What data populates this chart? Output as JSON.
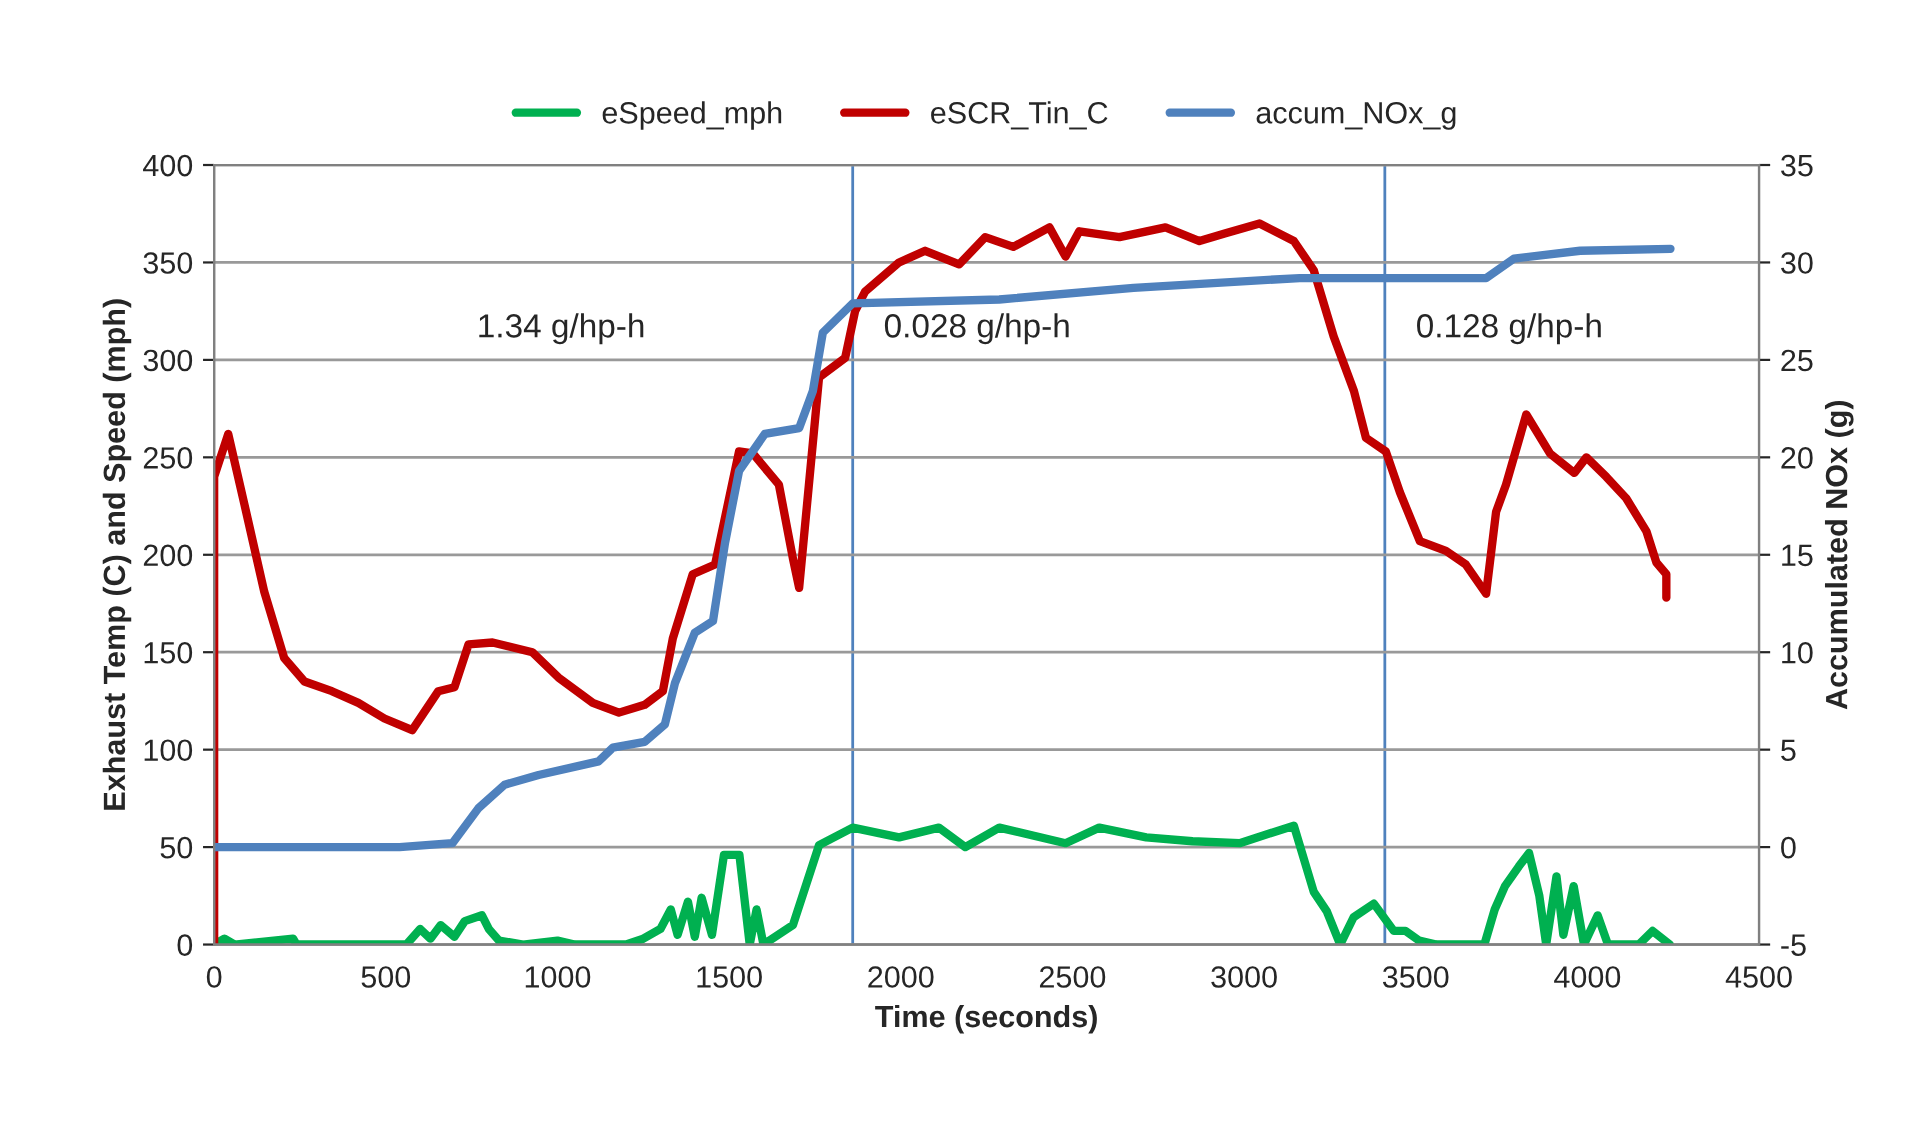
{
  "chart_data": {
    "type": "line",
    "xlabel": "Time (seconds)",
    "ylabel": "Exhaust Temp (C) and Speed (mph)",
    "y2label": "Accumulated NOx (g)",
    "xlim": [
      0,
      4500
    ],
    "xticks": [
      0,
      500,
      1000,
      1500,
      2000,
      2500,
      3000,
      3500,
      4000,
      4500
    ],
    "ylim": [
      0,
      400
    ],
    "yticks": [
      0,
      50,
      100,
      150,
      200,
      250,
      300,
      350,
      400
    ],
    "y2lim": [
      -5,
      35
    ],
    "y2ticks": [
      -5,
      0,
      5,
      10,
      15,
      20,
      25,
      30,
      35
    ],
    "grid": "y",
    "legend": "top",
    "marker": "none",
    "line_style": "solid",
    "series": [
      {
        "name": "eSpeed_mph",
        "color": "#00b050",
        "x": [
          0,
          30,
          60,
          230,
          240,
          560,
          600,
          630,
          660,
          700,
          730,
          780,
          800,
          830,
          900,
          1000,
          1050,
          1200,
          1250,
          1300,
          1330,
          1350,
          1380,
          1400,
          1420,
          1450,
          1485,
          1530,
          1560,
          1580,
          1600,
          1686,
          1762,
          1860,
          1995,
          2111,
          2188,
          2287,
          2480,
          2578,
          2715,
          2850,
          2987,
          3145,
          3203,
          3241,
          3280,
          3319,
          3378,
          3436,
          3470,
          3510,
          3560,
          3700,
          3730,
          3760,
          3800,
          3830,
          3860,
          3880,
          3910,
          3930,
          3960,
          3990,
          4030,
          4060,
          4150,
          4190,
          4240
        ],
        "values": [
          0,
          3,
          0,
          3,
          0,
          0,
          8,
          3,
          10,
          4,
          12,
          15,
          8,
          2,
          0,
          2,
          0,
          0,
          3,
          8,
          18,
          5,
          22,
          4,
          24,
          5,
          46,
          46,
          0,
          18,
          0,
          10,
          51,
          60,
          55,
          60,
          50,
          60,
          52,
          60,
          55,
          53,
          52,
          61,
          27,
          17,
          0,
          14,
          21,
          7,
          7,
          2,
          0,
          0,
          18,
          30,
          40,
          47,
          25,
          0,
          35,
          5,
          30,
          0,
          15,
          0,
          0,
          7,
          0
        ]
      },
      {
        "name": "eSCR_Tin_C",
        "color": "#c00000",
        "x": [
          0,
          0,
          41,
          88,
          146,
          204,
          263,
          343,
          420,
          496,
          577,
          653,
          700,
          741,
          811,
          927,
          1003,
          1103,
          1179,
          1254,
          1307,
          1336,
          1394,
          1459,
          1529,
          1569,
          1645,
          1686,
          1704,
          1762,
          1838,
          1867,
          1896,
          1995,
          2071,
          2170,
          2246,
          2328,
          2433,
          2480,
          2520,
          2637,
          2771,
          2870,
          2946,
          3045,
          3145,
          3203,
          3261,
          3320,
          3355,
          3413,
          3454,
          3512,
          3588,
          3646,
          3705,
          3734,
          3763,
          3822,
          3891,
          3962,
          3997,
          4055,
          4113,
          4172,
          4201,
          4230,
          4230
        ],
        "values": [
          0,
          240,
          262,
          226,
          181,
          147,
          135,
          130,
          124,
          116,
          110,
          130,
          132,
          154,
          155,
          150,
          137,
          124,
          119,
          123,
          130,
          157,
          190,
          195,
          253,
          252,
          236,
          198,
          183,
          291,
          301,
          325,
          335,
          350,
          356,
          349,
          363,
          358,
          368,
          353,
          366,
          363,
          368,
          361,
          365,
          370,
          361,
          346,
          312,
          284,
          260,
          253,
          232,
          207,
          202,
          195,
          180,
          222,
          236,
          272,
          252,
          242,
          250,
          240,
          229,
          212,
          196,
          190,
          178
        ]
      },
      {
        "name": "accum_NOx_g",
        "color": "#4f81bd",
        "axis": "y2",
        "x": [
          0,
          540,
          694,
          770,
          846,
          945,
          1120,
          1161,
          1254,
          1313,
          1342,
          1400,
          1453,
          1488,
          1529,
          1604,
          1704,
          1744,
          1773,
          1860,
          2287,
          2678,
          3162,
          3413,
          3705,
          3786,
          3979,
          4242
        ],
        "values": [
          0,
          0,
          0.2,
          2.0,
          3.2,
          3.7,
          4.4,
          5.1,
          5.4,
          6.3,
          8.4,
          11.0,
          11.6,
          15.6,
          19.3,
          21.2,
          21.5,
          23.4,
          26.4,
          27.9,
          28.1,
          28.7,
          29.2,
          29.2,
          29.2,
          30.2,
          30.6,
          30.7
        ]
      }
    ],
    "ref_lines": [
      {
        "axis": "x",
        "value": 1860,
        "color": "#4f81bd"
      },
      {
        "axis": "x",
        "value": 3410,
        "color": "#4f81bd"
      }
    ],
    "annotations": [
      "1.34 g/hp-h",
      "0.028 g/hp-h",
      "0.128 g/hp-h"
    ]
  }
}
